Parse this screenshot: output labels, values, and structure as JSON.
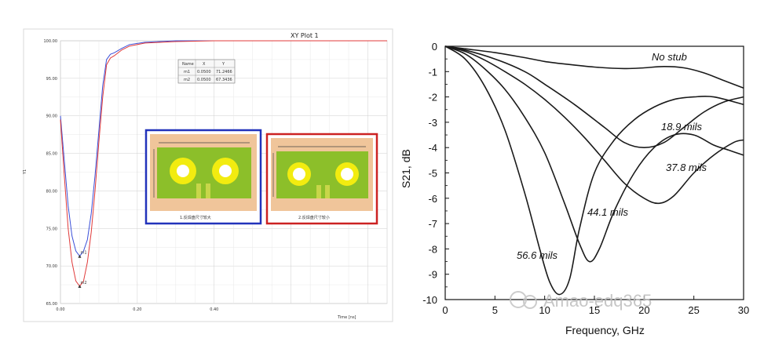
{
  "chart_data": [
    {
      "type": "line",
      "title": "XY Plot 1",
      "xlabel": "Time [ns]",
      "ylabel": "Y1",
      "xlim": [
        0.0,
        0.85
      ],
      "ylim": [
        65.0,
        100.0
      ],
      "x_ticks": [
        "0.00",
        "0.20",
        "0.40"
      ],
      "y_ticks": [
        "100.00",
        "95.00",
        "90.00",
        "85.00",
        "80.00",
        "75.00",
        "70.00",
        "65.00"
      ],
      "grid": true,
      "series": [
        {
          "color": "#3a4fd8",
          "marker_label": "m1",
          "x": [
            0.0,
            0.01,
            0.02,
            0.03,
            0.04,
            0.05,
            0.06,
            0.07,
            0.08,
            0.09,
            0.1,
            0.11,
            0.12,
            0.13,
            0.14,
            0.16,
            0.18,
            0.22,
            0.3,
            0.4,
            0.55,
            0.7,
            0.85
          ],
          "y": [
            90.0,
            84.0,
            78.0,
            74.0,
            72.0,
            71.3,
            72.0,
            73.5,
            77.0,
            82.0,
            88.0,
            94.0,
            97.5,
            98.2,
            98.4,
            99.0,
            99.5,
            99.8,
            100.0,
            100.0,
            100.0,
            100.0,
            100.0
          ]
        },
        {
          "color": "#e03a3a",
          "marker_label": "m2",
          "x": [
            0.0,
            0.01,
            0.02,
            0.03,
            0.04,
            0.05,
            0.06,
            0.07,
            0.08,
            0.09,
            0.1,
            0.11,
            0.12,
            0.13,
            0.14,
            0.16,
            0.18,
            0.22,
            0.3,
            0.4,
            0.55,
            0.7,
            0.85
          ],
          "y": [
            89.5,
            82.0,
            75.0,
            70.5,
            68.0,
            67.3,
            68.0,
            70.5,
            74.5,
            80.0,
            86.5,
            92.5,
            96.8,
            97.7,
            98.0,
            98.8,
            99.3,
            99.7,
            99.9,
            100.0,
            100.0,
            100.0,
            100.0
          ]
        }
      ],
      "marker_table": {
        "headers": [
          "Name",
          "X",
          "Y"
        ],
        "rows": [
          [
            "m1",
            "0.0500",
            "71.2466"
          ],
          [
            "m2",
            "0.0500",
            "67.3436"
          ]
        ]
      },
      "insets": [
        {
          "caption": "1.反焊盘尺寸较大",
          "border_color": "#2233bb"
        },
        {
          "caption": "2.反焊盘尺寸较小",
          "border_color": "#cc2222"
        }
      ]
    },
    {
      "type": "line",
      "xlabel": "Frequency, GHz",
      "ylabel": "S21, dB",
      "xlim": [
        0,
        30
      ],
      "ylim": [
        -10,
        0
      ],
      "x_ticks": [
        "0",
        "5",
        "10",
        "15",
        "20",
        "25",
        "30"
      ],
      "y_ticks": [
        "0",
        "-1",
        "-2",
        "-3",
        "-4",
        "-5",
        "-6",
        "-7",
        "-8",
        "-9",
        "-10"
      ],
      "grid": false,
      "series": [
        {
          "label": "No stub",
          "x": [
            0,
            2,
            5,
            8,
            10,
            12,
            15,
            18,
            20,
            22,
            24,
            26,
            28,
            30
          ],
          "y": [
            0,
            -0.1,
            -0.25,
            -0.45,
            -0.6,
            -0.7,
            -0.82,
            -0.88,
            -0.85,
            -0.8,
            -0.85,
            -1.05,
            -1.35,
            -1.65
          ]
        },
        {
          "label": "18.9 mils",
          "x": [
            0,
            2,
            5,
            8,
            10,
            13,
            16,
            18,
            20,
            22,
            24,
            26,
            28,
            30
          ],
          "y": [
            0,
            -0.15,
            -0.5,
            -1.0,
            -1.5,
            -2.3,
            -3.2,
            -3.8,
            -4.0,
            -3.8,
            -3.2,
            -2.6,
            -2.2,
            -2.0
          ]
        },
        {
          "label": "37.8 mils",
          "x": [
            0,
            2,
            4,
            6,
            8,
            10,
            12,
            14,
            16,
            18,
            20,
            21.5,
            23,
            25,
            27,
            29,
            30
          ],
          "y": [
            0,
            -0.2,
            -0.55,
            -1.0,
            -1.5,
            -2.1,
            -2.8,
            -3.6,
            -4.5,
            -5.4,
            -6.0,
            -6.2,
            -5.9,
            -5.0,
            -4.3,
            -3.8,
            -3.7
          ]
        },
        {
          "label": "44.1 mils",
          "x": [
            0,
            2,
            4,
            6,
            8,
            10,
            12,
            13.5,
            14.5,
            15.5,
            17,
            19,
            21,
            23,
            25,
            27,
            28.5,
            30
          ],
          "y": [
            0,
            -0.3,
            -0.9,
            -1.7,
            -2.8,
            -4.2,
            -6.2,
            -7.8,
            -8.5,
            -8.0,
            -6.5,
            -5.0,
            -4.0,
            -3.5,
            -3.5,
            -3.9,
            -4.1,
            -4.3
          ]
        },
        {
          "label": "56.6 mils",
          "x": [
            0,
            2,
            4,
            6,
            8,
            9.5,
            10.5,
            11.5,
            12.5,
            13.5,
            15,
            17,
            19,
            21,
            23,
            25,
            27,
            30
          ],
          "y": [
            0,
            -0.5,
            -1.6,
            -3.3,
            -5.8,
            -8.0,
            -9.3,
            -9.8,
            -9.2,
            -7.2,
            -5.0,
            -3.7,
            -2.9,
            -2.4,
            -2.1,
            -2.0,
            -2.0,
            -2.3
          ]
        }
      ]
    }
  ],
  "watermark": "Amao-edq365"
}
